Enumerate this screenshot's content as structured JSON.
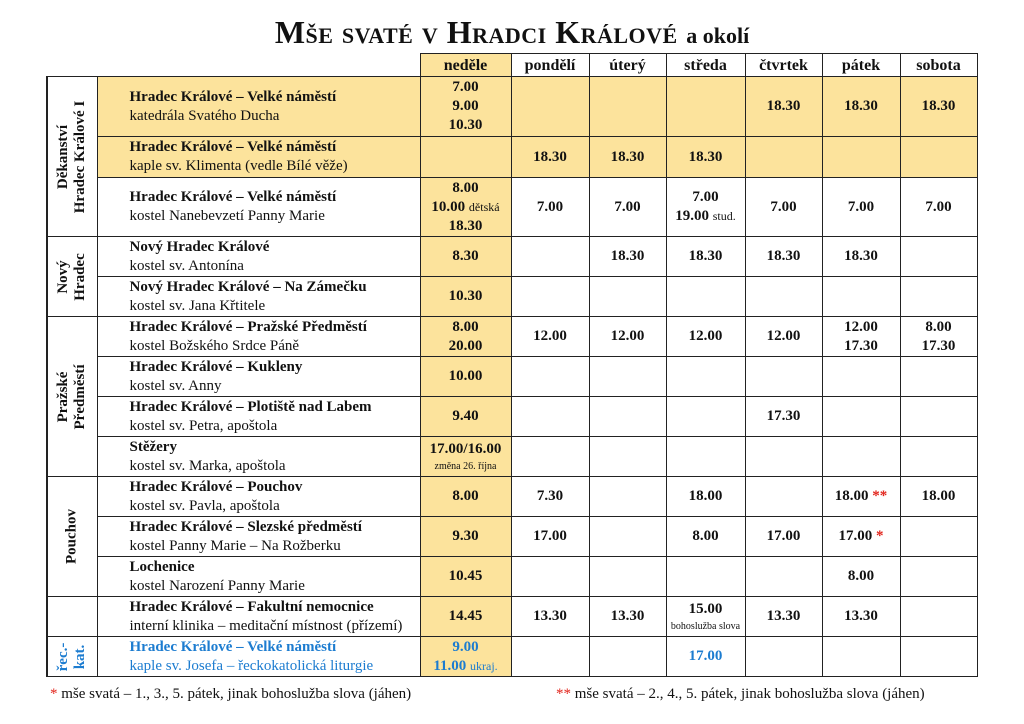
{
  "title": {
    "main": "Mše svaté v Hradci Králové",
    "suffix": "a okolí"
  },
  "days": [
    "neděle",
    "pondělí",
    "úterý",
    "středa",
    "čtvrtek",
    "pátek",
    "sobota"
  ],
  "groups": [
    {
      "label": [
        "Děkanství",
        "Hradec Králové I"
      ],
      "span": 3
    },
    {
      "label": [
        "Nový",
        "Hradec"
      ],
      "span": 2
    },
    {
      "label": [
        "Pražské",
        "Předměstí"
      ],
      "span": 4
    },
    {
      "label": [
        "Pouchov"
      ],
      "span": 3
    },
    {
      "label": [],
      "span": 1
    },
    {
      "label": [
        "řec.-",
        "kat."
      ],
      "span": 1,
      "blue": true
    }
  ],
  "rows": [
    {
      "place": "Hradec Králové – Velké náměstí",
      "sub": "katedrála Svatého Ducha",
      "highlight": true,
      "times": [
        [
          {
            "t": "7.00"
          },
          {
            "t": "9.00"
          },
          {
            "t": "10.30"
          }
        ],
        [],
        [],
        [],
        [
          {
            "t": "18.30"
          }
        ],
        [
          {
            "t": "18.30"
          }
        ],
        [
          {
            "t": "18.30"
          }
        ]
      ]
    },
    {
      "place": "Hradec Králové – Velké náměstí",
      "sub": "kaple sv. Klimenta (vedle Bílé věže)",
      "highlight": true,
      "times": [
        [],
        [
          {
            "t": "18.30"
          }
        ],
        [
          {
            "t": "18.30"
          }
        ],
        [
          {
            "t": "18.30"
          }
        ],
        [],
        [],
        []
      ]
    },
    {
      "place": "Hradec Králové – Velké náměstí",
      "sub": "kostel Nanebevzetí Panny Marie",
      "times": [
        [
          {
            "t": "8.00"
          },
          {
            "t": "10.00",
            "s": "dětská"
          },
          {
            "t": "18.30"
          }
        ],
        [
          {
            "t": "7.00"
          }
        ],
        [
          {
            "t": "7.00"
          }
        ],
        [
          {
            "t": "7.00"
          },
          {
            "t": "19.00",
            "s": "stud."
          }
        ],
        [
          {
            "t": "7.00"
          }
        ],
        [
          {
            "t": "7.00"
          }
        ],
        [
          {
            "t": "7.00"
          }
        ]
      ]
    },
    {
      "place": "Nový Hradec Králové",
      "sub": "kostel sv. Antonína",
      "times": [
        [
          {
            "t": "8.30"
          }
        ],
        [],
        [
          {
            "t": "18.30"
          }
        ],
        [
          {
            "t": "18.30"
          }
        ],
        [
          {
            "t": "18.30"
          }
        ],
        [
          {
            "t": "18.30"
          }
        ],
        []
      ]
    },
    {
      "place": "Nový Hradec Králové – Na Zámečku",
      "sub": "kostel sv. Jana Křtitele",
      "times": [
        [
          {
            "t": "10.30"
          }
        ],
        [],
        [],
        [],
        [],
        [],
        []
      ]
    },
    {
      "place": "Hradec Králové – Pražské Předměstí",
      "sub": "kostel Božského Srdce Páně",
      "times": [
        [
          {
            "t": "8.00"
          },
          {
            "t": "20.00"
          }
        ],
        [
          {
            "t": "12.00"
          }
        ],
        [
          {
            "t": "12.00"
          }
        ],
        [
          {
            "t": "12.00"
          }
        ],
        [
          {
            "t": "12.00"
          }
        ],
        [
          {
            "t": "12.00"
          },
          {
            "t": "17.30"
          }
        ],
        [
          {
            "t": "8.00"
          },
          {
            "t": "17.30"
          }
        ]
      ]
    },
    {
      "place": "Hradec Králové – Kukleny",
      "sub": "kostel sv. Anny",
      "times": [
        [
          {
            "t": "10.00"
          }
        ],
        [],
        [],
        [],
        [],
        [],
        []
      ]
    },
    {
      "place": "Hradec Králové – Plotiště nad Labem",
      "sub": "kostel sv. Petra, apoštola",
      "times": [
        [
          {
            "t": "9.40"
          }
        ],
        [],
        [],
        [],
        [
          {
            "t": "17.30"
          }
        ],
        [],
        []
      ]
    },
    {
      "place": "Stěžery",
      "sub": "kostel sv. Marka, apoštola",
      "times": [
        [
          {
            "t": "17.00/16.00"
          },
          {
            "n": "změna 26. října"
          }
        ],
        [],
        [],
        [],
        [],
        [],
        []
      ]
    },
    {
      "place": "Hradec Králové – Pouchov",
      "sub": "kostel sv. Pavla, apoštola",
      "times": [
        [
          {
            "t": "8.00"
          }
        ],
        [
          {
            "t": "7.30"
          }
        ],
        [],
        [
          {
            "t": "18.00"
          }
        ],
        [],
        [
          {
            "t": "18.00",
            "star": "**"
          }
        ],
        [
          {
            "t": "18.00"
          }
        ]
      ]
    },
    {
      "place": "Hradec Králové – Slezské předměstí",
      "sub": "kostel Panny Marie – Na Rožberku",
      "times": [
        [
          {
            "t": "9.30"
          }
        ],
        [
          {
            "t": "17.00"
          }
        ],
        [],
        [
          {
            "t": "8.00"
          }
        ],
        [
          {
            "t": "17.00"
          }
        ],
        [
          {
            "t": "17.00",
            "star": "*"
          }
        ],
        []
      ]
    },
    {
      "place": "Lochenice",
      "sub": "kostel Narození Panny Marie",
      "times": [
        [
          {
            "t": "10.45"
          }
        ],
        [],
        [],
        [],
        [],
        [
          {
            "t": "8.00"
          }
        ],
        []
      ]
    },
    {
      "place": "Hradec Králové – Fakultní nemocnice",
      "sub": "interní klinika – meditační místnost (přízemí)",
      "times": [
        [
          {
            "t": "14.45"
          }
        ],
        [
          {
            "t": "13.30"
          }
        ],
        [
          {
            "t": "13.30"
          }
        ],
        [
          {
            "t": "15.00"
          },
          {
            "n": "bohoslužba slova"
          }
        ],
        [
          {
            "t": "13.30"
          }
        ],
        [
          {
            "t": "13.30"
          }
        ],
        []
      ]
    },
    {
      "place": "Hradec Králové – Velké náměstí",
      "sub": "kaple sv. Josefa – řeckokatolická liturgie",
      "blue": true,
      "times": [
        [
          {
            "t": "9.00"
          },
          {
            "t": "11.00",
            "s": "ukraj."
          }
        ],
        [],
        [],
        [
          {
            "t": "17.00"
          }
        ],
        [],
        [],
        []
      ]
    }
  ],
  "footnotes": [
    {
      "mark": "*",
      "text": "mše svatá – 1., 3., 5. pátek, jinak bohoslužba slova (jáhen)"
    },
    {
      "mark": "**",
      "text": "mše svatá – 2., 4., 5. pátek, jinak bohoslužba slova (jáhen)"
    }
  ],
  "colors": {
    "highlight": "#fce39c",
    "blue": "#1c7cd0",
    "star": "#e2231a"
  }
}
